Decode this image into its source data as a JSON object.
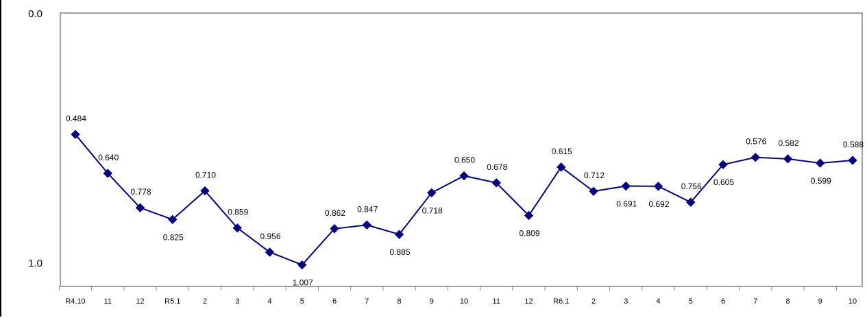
{
  "chart_data": {
    "type": "line",
    "title": "",
    "xlabel": "",
    "ylabel": "",
    "ylim": [
      0.0,
      1.0
    ],
    "y_inverted": true,
    "y_ticks": [
      "0.0",
      "1.0"
    ],
    "grid": false,
    "legend": "none",
    "series_color": "#000080",
    "categories": [
      "R4.10",
      "11",
      "12",
      "R5.1",
      "2",
      "3",
      "4",
      "5",
      "6",
      "7",
      "8",
      "9",
      "10",
      "11",
      "12",
      "R6.1",
      "2",
      "3",
      "4",
      "5",
      "6",
      "7",
      "8",
      "9",
      "10"
    ],
    "series": [
      {
        "values": [
          0.484,
          0.64,
          0.778,
          0.825,
          0.71,
          0.859,
          0.956,
          1.007,
          0.862,
          0.847,
          0.885,
          0.718,
          0.65,
          0.678,
          0.809,
          0.615,
          0.712,
          0.691,
          0.692,
          0.756,
          0.605,
          0.576,
          0.582,
          0.599,
          0.588
        ],
        "labels": [
          "0.484",
          "0.640",
          "0.778",
          "0.825",
          "0.710",
          "0.859",
          "0.956",
          "1.007",
          "0.862",
          "0.847",
          "0.885",
          "0.718",
          "0.650",
          "0.678",
          "0.809",
          "0.615",
          "0.712",
          "0.691",
          "0.692",
          "0.756",
          "0.605",
          "0.576",
          "0.582",
          "0.599",
          "0.588"
        ],
        "label_positions": [
          "above",
          "above",
          "above",
          "below",
          "above",
          "above",
          "above",
          "below",
          "above",
          "above",
          "below",
          "below",
          "above",
          "above",
          "below",
          "above",
          "above",
          "below",
          "below",
          "above",
          "below",
          "above",
          "above",
          "below",
          "above"
        ]
      }
    ]
  }
}
